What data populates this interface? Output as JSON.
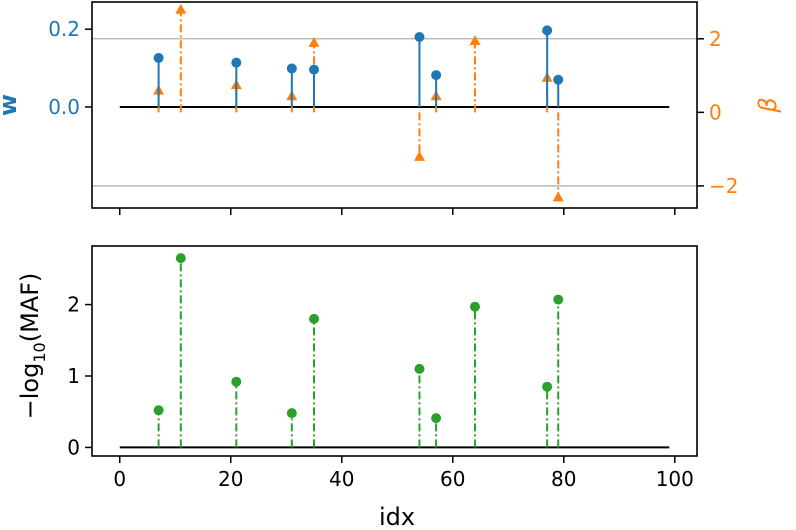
{
  "colors": {
    "blue": "#1f77b4",
    "orange": "#ff7f0e",
    "green": "#2ca02c",
    "black": "#000000",
    "grid": "#b0b0b0"
  },
  "chart_data": [
    {
      "type": "stem",
      "panel": "top",
      "xlabel": "",
      "xlim": [
        -5,
        104
      ],
      "ylabel_left": "w",
      "ylabel_right": "β",
      "ylim_left": [
        -0.26,
        0.27
      ],
      "ylim_right": [
        -2.6,
        3.0
      ],
      "yticks_left": [
        {
          "value": 0.0,
          "label": "0.0"
        },
        {
          "value": 0.2,
          "label": "0.2"
        }
      ],
      "yticks_right": [
        {
          "value": -2,
          "label": "−2"
        },
        {
          "value": 0,
          "label": "0"
        },
        {
          "value": 2,
          "label": "2"
        }
      ],
      "baseline": {
        "from": 0,
        "to": 99,
        "value": 0
      },
      "hlines_right": [
        2,
        -2
      ],
      "series": [
        {
          "axis": "left",
          "style": "solid",
          "marker": "circle",
          "x": [
            7,
            21,
            31,
            35,
            54,
            57,
            77,
            79
          ],
          "y": [
            0.126,
            0.114,
            0.099,
            0.096,
            0.18,
            0.082,
            0.197,
            0.07
          ]
        },
        {
          "axis": "right",
          "style": "dashdot",
          "marker": "triangle-up",
          "x": [
            7,
            11,
            21,
            31,
            35,
            54,
            57,
            64,
            77,
            79
          ],
          "y": [
            0.6,
            2.8,
            0.75,
            0.45,
            1.9,
            -1.2,
            0.45,
            1.95,
            0.95,
            -2.3
          ]
        }
      ]
    },
    {
      "type": "stem",
      "panel": "bottom",
      "xlabel": "idx",
      "ylabel": "−log",
      "ylabel_sub": "10",
      "ylabel_suffix": "(MAF)",
      "xlim": [
        -5,
        104
      ],
      "ylim": [
        -0.12,
        2.82
      ],
      "xticks": [
        {
          "value": 0,
          "label": "0"
        },
        {
          "value": 20,
          "label": "20"
        },
        {
          "value": 40,
          "label": "40"
        },
        {
          "value": 60,
          "label": "60"
        },
        {
          "value": 80,
          "label": "80"
        },
        {
          "value": 100,
          "label": "100"
        }
      ],
      "yticks": [
        {
          "value": 0,
          "label": "0"
        },
        {
          "value": 1,
          "label": "1"
        },
        {
          "value": 2,
          "label": "2"
        }
      ],
      "baseline": {
        "from": 0,
        "to": 99,
        "value": 0
      },
      "series": [
        {
          "style": "dashdot",
          "marker": "circle",
          "x": [
            7,
            11,
            21,
            31,
            35,
            54,
            57,
            64,
            77,
            79
          ],
          "y": [
            0.52,
            2.65,
            0.92,
            0.48,
            1.8,
            1.1,
            0.41,
            1.97,
            0.85,
            2.07
          ]
        }
      ]
    }
  ]
}
